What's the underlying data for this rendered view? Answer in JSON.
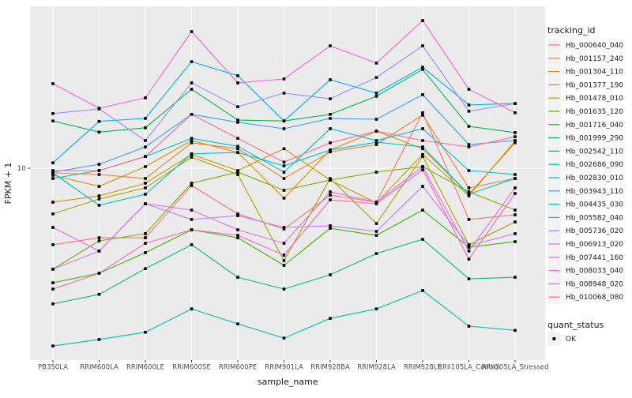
{
  "chart_data": {
    "type": "line",
    "title": "",
    "xlabel": "sample_name",
    "ylabel": "FPKM + 1",
    "y_scale": "log10",
    "y_ticks": [
      10
    ],
    "y_range_approx": [
      0.88,
      78
    ],
    "grid": "on",
    "legend_position": "right",
    "categories": [
      "PB350LA",
      "RRIM600LA",
      "RRIM600LE",
      "RRIM600SE",
      "RRIM600PE",
      "RRIM901LA",
      "RRIM928BA",
      "RRIM928LA",
      "RRIM928LE",
      "RRII105LA_Control",
      "RRII105LA_Stressed"
    ],
    "series": [
      {
        "tracking_id": "Hb_000640_040",
        "color": "#F8766D",
        "values": [
          3.79,
          4.14,
          4.14,
          8.02,
          5.6,
          4.63,
          7.11,
          6.5,
          20.2,
          5.22,
          5.54
        ]
      },
      {
        "tracking_id": "Hb_001157_240",
        "color": "#EA8331",
        "values": [
          9.42,
          9.23,
          8.78,
          13.8,
          12.8,
          8.78,
          12.3,
          13.5,
          19.6,
          7.79,
          8.78
        ]
      },
      {
        "tracking_id": "Hb_001304_110",
        "color": "#D89000",
        "values": [
          9.14,
          7.94,
          10.2,
          14.2,
          12.2,
          6.84,
          12.6,
          16.0,
          12.8,
          7.19,
          13.8
        ]
      },
      {
        "tracking_id": "Hb_001377_190",
        "color": "#C49A00",
        "values": [
          6.5,
          7.04,
          8.27,
          11.9,
          9.7,
          12.8,
          8.6,
          6.44,
          11.9,
          7.04,
          14.1
        ]
      },
      {
        "tracking_id": "Hb_001478_010",
        "color": "#A3A500",
        "values": [
          5.6,
          6.77,
          7.79,
          11.5,
          9.23,
          3.1,
          8.78,
          4.96,
          11.6,
          3.79,
          5.06
        ]
      },
      {
        "tracking_id": "Hb_001635_120",
        "color": "#7CAE00",
        "values": [
          2.78,
          3.98,
          4.36,
          8.27,
          9.51,
          7.56,
          8.6,
          9.51,
          10.2,
          7.41,
          5.88
        ]
      },
      {
        "tracking_id": "Hb_001716_040",
        "color": "#39B600",
        "values": [
          2.34,
          2.64,
          3.43,
          4.58,
          4.14,
          2.92,
          4.67,
          4.27,
          5.88,
          3.67,
          3.94
        ]
      },
      {
        "tracking_id": "Hb_001999_290",
        "color": "#00BB4E",
        "values": [
          18.2,
          15.8,
          16.7,
          27.2,
          18.4,
          18.2,
          19.8,
          24.9,
          35.0,
          17.0,
          15.7
        ]
      },
      {
        "tracking_id": "Hb_002542_110",
        "color": "#00BF7D",
        "values": [
          1.79,
          2.02,
          2.8,
          3.79,
          2.51,
          2.16,
          2.59,
          3.39,
          4.06,
          2.46,
          2.51
        ]
      },
      {
        "tracking_id": "Hb_002686_090",
        "color": "#00C1A3",
        "values": [
          1.05,
          1.14,
          1.25,
          1.68,
          1.39,
          1.16,
          1.49,
          1.68,
          2.12,
          1.35,
          1.28
        ]
      },
      {
        "tracking_id": "Hb_002830_010",
        "color": "#00BFC4",
        "values": [
          9.42,
          6.25,
          7.19,
          12.0,
          12.2,
          10.3,
          12.6,
          13.9,
          13.1,
          7.19,
          8.78
        ]
      },
      {
        "tracking_id": "Hb_003943_110",
        "color": "#00BAE0",
        "values": [
          8.78,
          9.7,
          11.6,
          14.6,
          13.2,
          9.51,
          16.5,
          14.2,
          16.5,
          9.7,
          9.23
        ]
      },
      {
        "tracking_id": "Hb_004435_030",
        "color": "#00B0F6",
        "values": [
          10.7,
          18.1,
          18.8,
          38.6,
          32.3,
          18.2,
          30.7,
          25.9,
          36.0,
          22.3,
          22.7
        ]
      },
      {
        "tracking_id": "Hb_005582_040",
        "color": "#35A2FF",
        "values": [
          9.51,
          10.5,
          13.1,
          19.8,
          17.9,
          16.5,
          18.8,
          18.6,
          25.4,
          13.5,
          14.2
        ]
      },
      {
        "tracking_id": "Hb_005736_020",
        "color": "#9590FF",
        "values": [
          20.0,
          21.2,
          14.2,
          29.5,
          21.8,
          25.9,
          24.1,
          31.6,
          47.2,
          20.6,
          22.7
        ]
      },
      {
        "tracking_id": "Hb_006913_020",
        "color": "#C77CFF",
        "values": [
          2.78,
          3.5,
          6.37,
          5.22,
          5.48,
          4.72,
          4.82,
          4.49,
          7.94,
          3.75,
          4.36
        ]
      },
      {
        "tracking_id": "Hb_007441_160",
        "color": "#E76BF3",
        "values": [
          4.72,
          3.5,
          6.37,
          5.88,
          4.58,
          3.86,
          7.41,
          6.5,
          10.2,
          3.5,
          7.79
        ]
      },
      {
        "tracking_id": "Hb_008033_040",
        "color": "#FA62DB",
        "values": [
          29.2,
          21.4,
          24.4,
          56.5,
          29.5,
          31.0,
          47.2,
          37.9,
          65.0,
          27.2,
          20.2
        ]
      },
      {
        "tracking_id": "Hb_008948_020",
        "color": "#FF62BC",
        "values": [
          2.16,
          2.64,
          3.86,
          4.58,
          4.27,
          3.32,
          6.7,
          6.37,
          9.8,
          3.16,
          7.26
        ]
      },
      {
        "tracking_id": "Hb_010068_080",
        "color": "#FF6A98",
        "values": [
          9.7,
          9.7,
          11.6,
          19.8,
          14.6,
          10.8,
          13.8,
          16.0,
          14.2,
          13.1,
          14.9
        ]
      }
    ],
    "legend": {
      "title": "tracking_id"
    },
    "quant_status_legend": {
      "title": "quant_status",
      "items": [
        {
          "label": "OK",
          "marker": "black-square"
        }
      ]
    }
  },
  "style": {
    "panel_bg": "#EBEBEB",
    "grid_color": "#FFFFFF",
    "marker_color": "#000000",
    "tick_color": "#333333",
    "tick_label_color": "#4D4D4D",
    "axis_title_color": "#1A1A1A",
    "legend_key_bg": "#F2F2F2",
    "legend_text_color": "#1A1A1A"
  }
}
